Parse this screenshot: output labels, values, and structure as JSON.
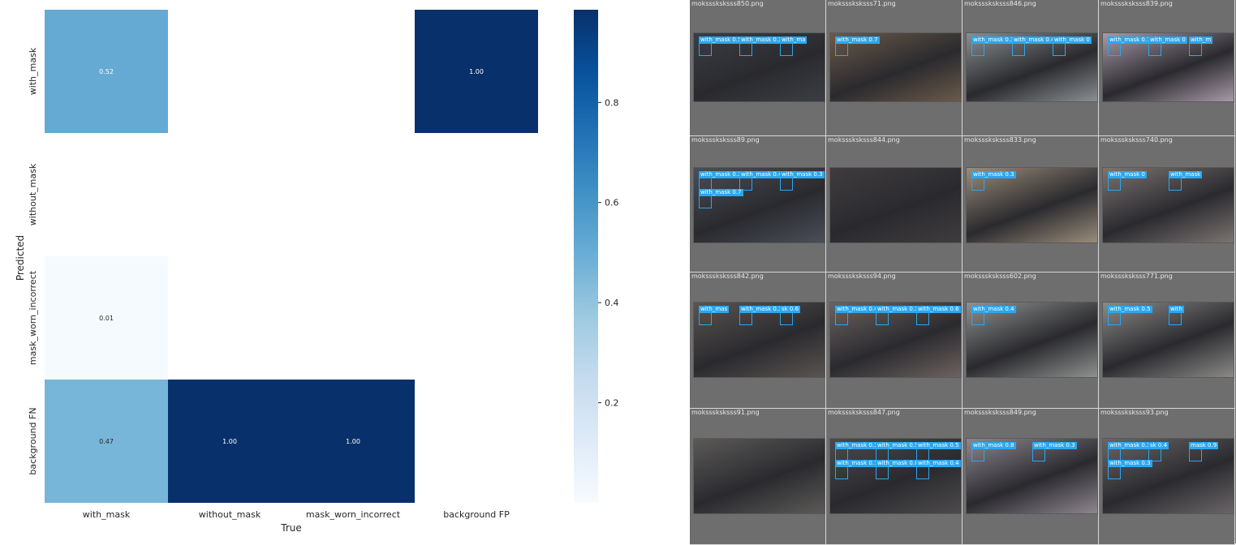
{
  "chart_data": {
    "type": "heatmap",
    "x_categories": [
      "with_mask",
      "without_mask",
      "mask_worn_incorrect",
      "background FP"
    ],
    "y_categories": [
      "with_mask",
      "without_mask",
      "mask_worn_incorrect",
      "background FN"
    ],
    "values": [
      [
        0.52,
        null,
        null,
        1.0
      ],
      [
        null,
        null,
        null,
        null
      ],
      [
        0.01,
        null,
        null,
        null
      ],
      [
        0.47,
        1.0,
        1.0,
        null
      ]
    ],
    "value_labels": [
      [
        "0.52",
        "",
        "",
        "1.00"
      ],
      [
        "",
        "",
        "",
        ""
      ],
      [
        "0.01",
        "",
        "",
        ""
      ],
      [
        "0.47",
        "1.00",
        "1.00",
        ""
      ]
    ],
    "xlabel": "True",
    "ylabel": "Predicted",
    "colorbar": {
      "range": [
        0,
        1
      ],
      "ticks": [
        "0.2",
        "0.4",
        "0.6",
        "0.8"
      ],
      "colormap": "Blues"
    },
    "colors": {
      "low": "#f7fbff",
      "mid": "#5aa6d4",
      "high": "#08306b"
    }
  },
  "gallery": {
    "tiles": [
      {
        "name": "moksssksksss850.png",
        "scene": "#3b3e44",
        "dets": [
          [
            "with_mask 0.5"
          ],
          [
            "with_mask 0.3"
          ],
          [
            "with_ma"
          ]
        ]
      },
      {
        "name": "moksssksksss71.png",
        "scene": "#6b5a4a",
        "dets": [
          [
            "with_mask 0.7"
          ]
        ]
      },
      {
        "name": "moksssksksss846.png",
        "scene": "#8a8f92",
        "dets": [
          [
            "with_mask 0.3"
          ],
          [
            "with_mask 0.4"
          ],
          [
            "with_mask 0"
          ]
        ]
      },
      {
        "name": "moksssksksss839.png",
        "scene": "#a89aa8",
        "dets": [
          [
            "with_mask 0.7"
          ],
          [
            "with_mask 0"
          ],
          [
            "with_m"
          ]
        ]
      },
      {
        "name": "moksssksksss89.png",
        "scene": "#4a4e58",
        "dets": [
          [
            "with_mask 0.3"
          ],
          [
            "with_mask 0.4"
          ],
          [
            "with_mask 0.3"
          ],
          [
            "with_mask 0.7"
          ]
        ]
      },
      {
        "name": "moksssksksss844.png",
        "scene": "#3f3c3e",
        "dets": []
      },
      {
        "name": "moksssksksss833.png",
        "scene": "#9a8c7a",
        "dets": [
          [
            "with_mask 0.3"
          ]
        ]
      },
      {
        "name": "moksssksksss740.png",
        "scene": "#7b7472",
        "dets": [
          [
            "with_mask 0"
          ],
          [
            "with_mask"
          ]
        ]
      },
      {
        "name": "moksssksksss842.png",
        "scene": "#5a5450",
        "dets": [
          [
            "with_mas"
          ],
          [
            "with_mask 0.3"
          ],
          [
            "sk 0.6"
          ]
        ]
      },
      {
        "name": "moksssksksss94.png",
        "scene": "#6c6360",
        "dets": [
          [
            "with_mask 0.4"
          ],
          [
            "with_mask 0.3"
          ],
          [
            "with_mask 0.6"
          ]
        ]
      },
      {
        "name": "moksssksksss602.png",
        "scene": "#8f918f",
        "dets": [
          [
            "with_mask 0.4"
          ]
        ]
      },
      {
        "name": "moksssksksss771.png",
        "scene": "#8b8a88",
        "dets": [
          [
            "with_mask 0.5"
          ],
          [
            "with"
          ]
        ]
      },
      {
        "name": "moksssksksss91.png",
        "scene": "#5c5a58",
        "dets": []
      },
      {
        "name": "moksssksksss847.png",
        "scene": "#4c4a4c",
        "dets": [
          [
            "with_mask 0.3"
          ],
          [
            "with_mask 0.5"
          ],
          [
            "with_mask 0.5"
          ],
          [
            "with_mask 0.7"
          ],
          [
            "with_mask 0.8"
          ],
          [
            "with_mask 0.4"
          ]
        ]
      },
      {
        "name": "moksssksksss849.png",
        "scene": "#8e8690",
        "dets": [
          [
            "with_mask 0.8"
          ],
          [
            "with_mask 0.3"
          ]
        ]
      },
      {
        "name": "moksssksksss93.png",
        "scene": "#6a6668",
        "dets": [
          [
            "with_mask 0.3"
          ],
          [
            "sk 0.4"
          ],
          [
            "mask 0.9"
          ],
          [
            "with_mask 0.3"
          ]
        ]
      }
    ]
  }
}
